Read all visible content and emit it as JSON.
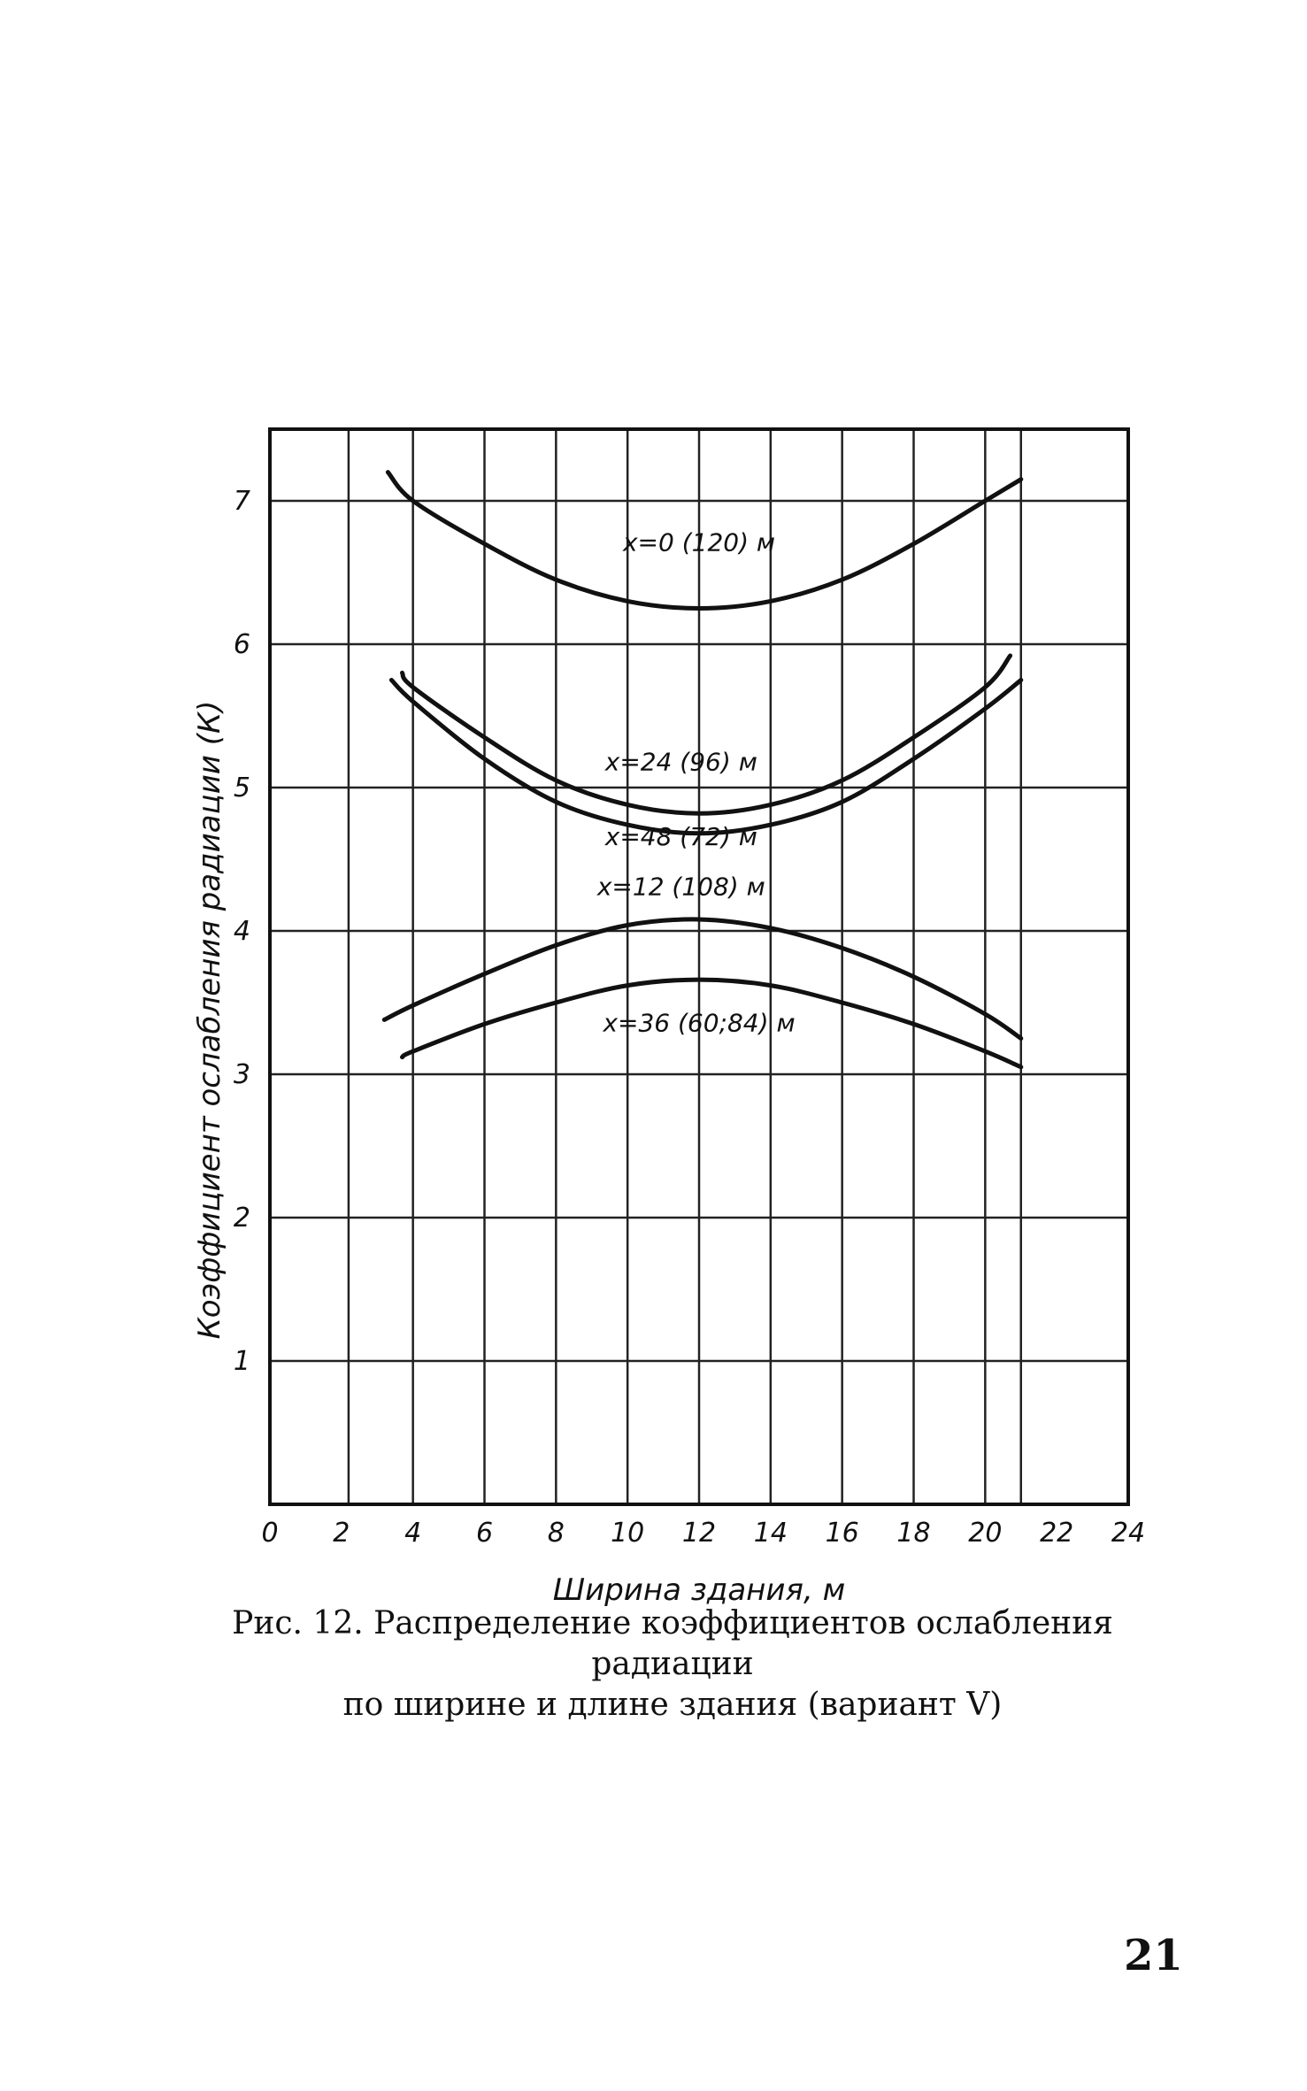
{
  "chart_data": {
    "type": "line",
    "xlabel": "Ширина здания, м",
    "ylabel": "Коэффициент ослабления радиации (К)",
    "xlim": [
      0,
      24
    ],
    "ylim": [
      0,
      7.5
    ],
    "x_ticks": [
      0,
      2,
      4,
      6,
      8,
      10,
      12,
      14,
      16,
      18,
      20,
      22,
      24
    ],
    "y_ticks": [
      1,
      2,
      3,
      4,
      5,
      6,
      7
    ],
    "x_tick_labels": [
      "0",
      "2",
      "4",
      "6",
      "8",
      "10",
      "12",
      "14",
      "16",
      "18",
      "20",
      "22",
      "24"
    ],
    "y_tick_labels": [
      "1",
      "2",
      "3",
      "4",
      "5",
      "6",
      "7"
    ],
    "grid": true,
    "vertical_grid_x": [
      2.2,
      4,
      6,
      8,
      10,
      12,
      14,
      16,
      18,
      20,
      21,
      24
    ],
    "series": [
      {
        "name": "x=0 (120) м",
        "x": [
          3.3,
          4,
          6,
          8,
          10,
          12,
          14,
          16,
          18,
          20,
          21
        ],
        "y": [
          7.2,
          7.0,
          6.7,
          6.45,
          6.3,
          6.25,
          6.3,
          6.45,
          6.7,
          7.0,
          7.15
        ]
      },
      {
        "name": "x=24 (96) м",
        "x": [
          3.7,
          4,
          6,
          8,
          10,
          12,
          14,
          16,
          18,
          20,
          20.7
        ],
        "y": [
          5.8,
          5.7,
          5.35,
          5.05,
          4.88,
          4.82,
          4.88,
          5.05,
          5.35,
          5.7,
          5.92
        ]
      },
      {
        "name": "x=48 (72) м",
        "x": [
          3.4,
          4,
          6,
          8,
          10,
          12,
          14,
          16,
          18,
          20,
          21
        ],
        "y": [
          5.75,
          5.6,
          5.2,
          4.9,
          4.74,
          4.68,
          4.74,
          4.9,
          5.2,
          5.55,
          5.75
        ]
      },
      {
        "name": "x=12 (108) м",
        "x": [
          3.2,
          4,
          6,
          8,
          10,
          12,
          14,
          16,
          18,
          20,
          21
        ],
        "y": [
          3.38,
          3.48,
          3.7,
          3.9,
          4.04,
          4.08,
          4.02,
          3.88,
          3.68,
          3.42,
          3.25
        ]
      },
      {
        "name": "x=36 (60;84) м",
        "x": [
          3.7,
          4,
          6,
          8,
          10,
          12,
          14,
          16,
          18,
          20,
          21
        ],
        "y": [
          3.12,
          3.16,
          3.35,
          3.5,
          3.62,
          3.66,
          3.62,
          3.5,
          3.35,
          3.16,
          3.05
        ]
      }
    ],
    "label_positions": [
      {
        "x": 12,
        "y": 6.65
      },
      {
        "x": 11.5,
        "y": 5.12
      },
      {
        "x": 11.5,
        "y": 4.6
      },
      {
        "x": 11.5,
        "y": 4.25
      },
      {
        "x": 12,
        "y": 3.3
      }
    ]
  },
  "caption": {
    "line1": "Рис. 12. Распределение коэффициентов ослабления радиации",
    "line2": "по ширине и длине здания (вариант V)"
  },
  "page_number": "21"
}
